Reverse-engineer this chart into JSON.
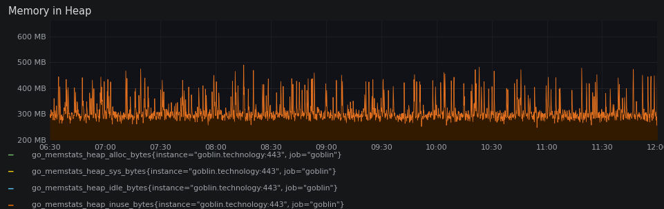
{
  "title": "Memory in Heap",
  "fig_bg_color": "#161719",
  "plot_bg_color": "#111217",
  "grid_color": "#2c2e33",
  "text_color": "#9fa3a9",
  "title_color": "#d8d9da",
  "ylim": [
    200000000,
    660000000
  ],
  "yticks": [
    200000000,
    300000000,
    400000000,
    500000000,
    600000000
  ],
  "ytick_labels": [
    "200 MB",
    "300 MB",
    "400 MB",
    "500 MB",
    "600 MB"
  ],
  "xtick_labels": [
    "06:30",
    "07:00",
    "07:30",
    "08:00",
    "08:30",
    "09:00",
    "09:30",
    "10:00",
    "10:30",
    "11:00",
    "11:30",
    "12:00"
  ],
  "fill_color": "#321a00",
  "line_color": "#e07020",
  "legend_items": [
    {
      "label": "go_memstats_heap_alloc_bytes{instance=\"goblin.technology:443\", job=\"goblin\"}",
      "color": "#73bf69"
    },
    {
      "label": "go_memstats_heap_sys_bytes{instance=\"goblin.technology:443\", job=\"goblin\"}",
      "color": "#f2cc0c"
    },
    {
      "label": "go_memstats_heap_idle_bytes{instance=\"goblin.technology:443\", job=\"goblin\"}",
      "color": "#5bc4f5"
    },
    {
      "label": "go_memstats_heap_inuse_bytes{instance=\"goblin.technology:443\", job=\"goblin\"}",
      "color": "#ff7300"
    }
  ]
}
